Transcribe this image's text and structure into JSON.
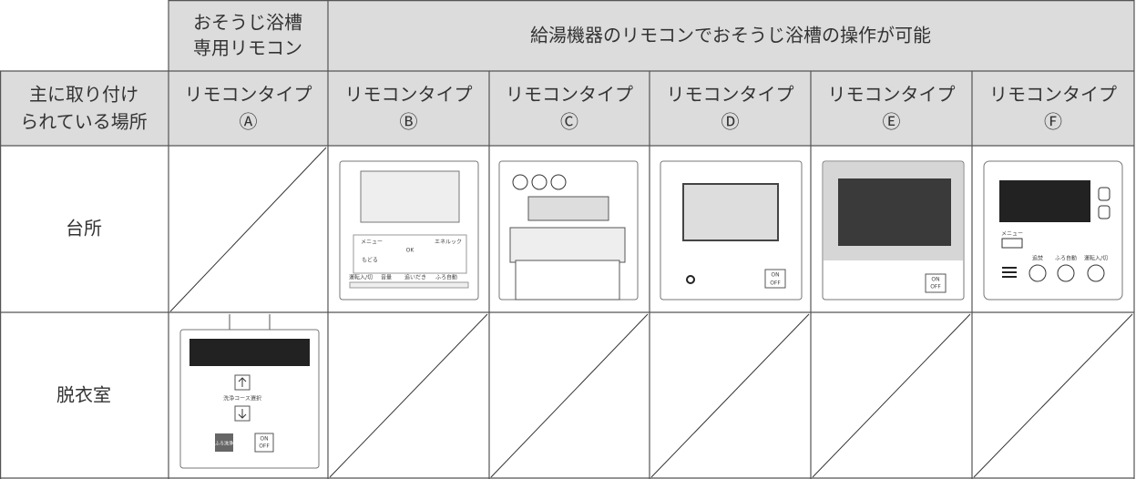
{
  "header_row": {
    "dedicated": [
      "おそうじ浴槽",
      "専用リモコン"
    ],
    "shared": "給湯機器のリモコンでおそうじ浴槽の操作が可能"
  },
  "type_row": {
    "label": [
      "主に取り付け",
      "られている場所"
    ],
    "types": [
      [
        "リモコンタイプ",
        "Ⓐ"
      ],
      [
        "リモコンタイプ",
        "Ⓑ"
      ],
      [
        "リモコンタイプ",
        "Ⓒ"
      ],
      [
        "リモコンタイプ",
        "Ⓓ"
      ],
      [
        "リモコンタイプ",
        "Ⓔ"
      ],
      [
        "リモコンタイプ",
        "Ⓕ"
      ]
    ]
  },
  "rows": [
    {
      "label": "台所"
    },
    {
      "label": "脱衣室"
    }
  ],
  "remote_labels": {
    "a": {
      "course": "洗浄コース選択",
      "wash": "ふろ洗浄",
      "on": "ON",
      "off": "OFF"
    },
    "b": {
      "menu": "メニュー",
      "ok": "OK",
      "back": "もどる",
      "eco": "エネルック",
      "power": "運転入/切",
      "volume": "音量",
      "reheat": "追いだき",
      "auto": "ふろ自動"
    },
    "d": {
      "on": "ON",
      "off": "OFF"
    },
    "e": {
      "on": "ON",
      "off": "OFF"
    },
    "f": {
      "menu": "メニュー",
      "reheat": "追焚",
      "auto": "ふろ自動",
      "power": "運転入/切"
    }
  }
}
